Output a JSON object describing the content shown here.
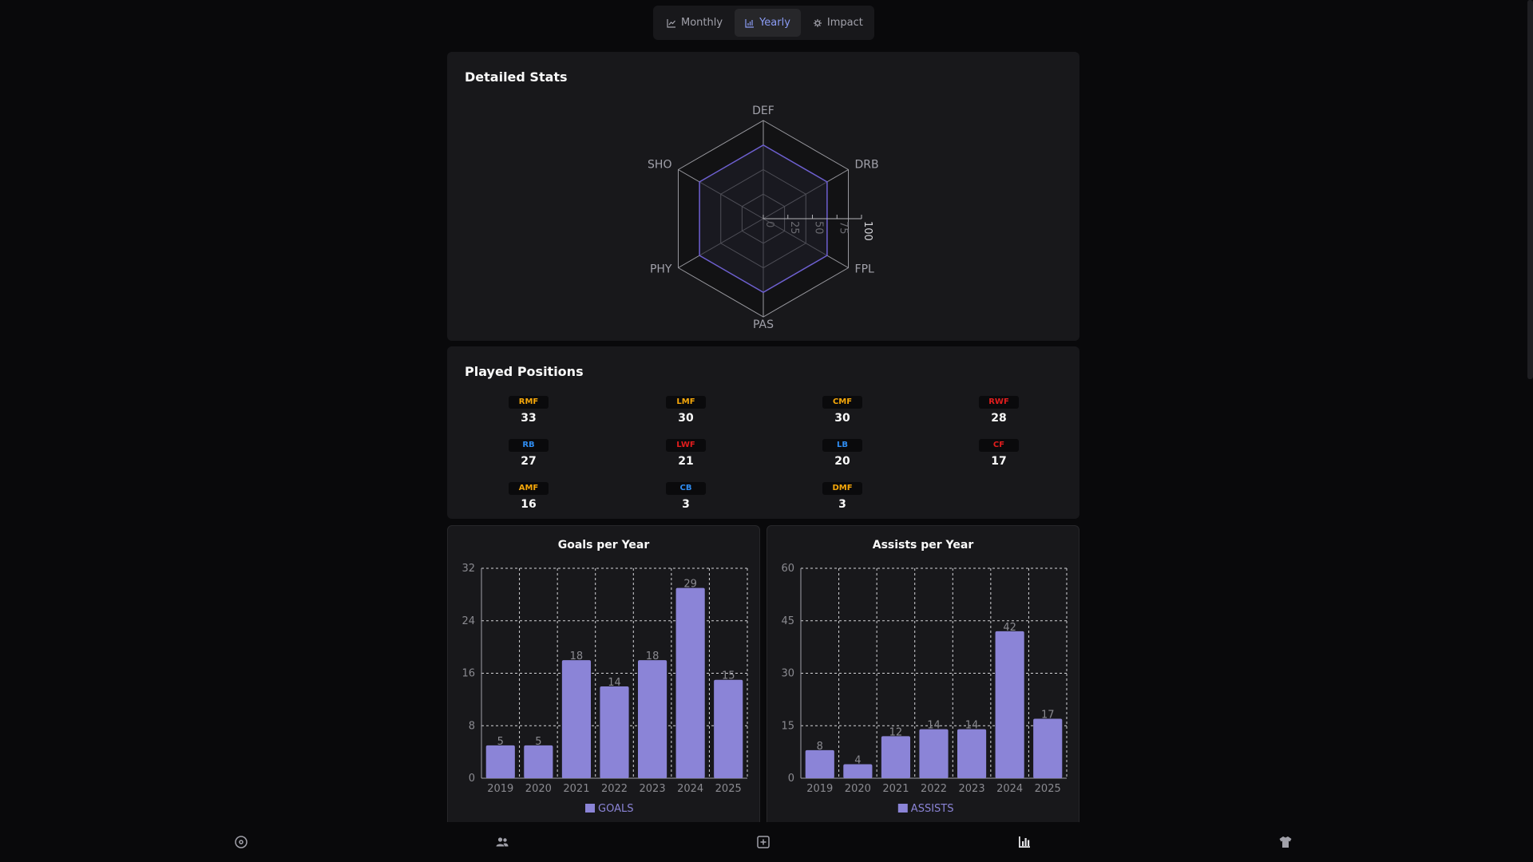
{
  "toggle": {
    "tabs": [
      {
        "label": "Monthly",
        "icon": "line-chart-icon",
        "active": false
      },
      {
        "label": "Yearly",
        "icon": "bar-chart-icon",
        "active": true
      },
      {
        "label": "Impact",
        "icon": "impact-icon",
        "active": false
      }
    ]
  },
  "detailed_stats": {
    "title": "Detailed Stats",
    "radar": {
      "axes": [
        "DEF",
        "DRB",
        "FPL",
        "PAS",
        "PHY",
        "SHO"
      ],
      "scale_ticks": [
        "0",
        "25",
        "50",
        "75",
        "100"
      ],
      "max": 100,
      "values": [
        75,
        75,
        75,
        75,
        75,
        75
      ],
      "color": "#6d5fd0"
    }
  },
  "played_positions": {
    "title": "Played Positions",
    "items": [
      {
        "code": "RMF",
        "count": "33",
        "color": "#f5a70a"
      },
      {
        "code": "LMF",
        "count": "30",
        "color": "#f5a70a"
      },
      {
        "code": "CMF",
        "count": "30",
        "color": "#f5a70a"
      },
      {
        "code": "RWF",
        "count": "28",
        "color": "#e11d1d"
      },
      {
        "code": "RB",
        "count": "27",
        "color": "#2f8cf0"
      },
      {
        "code": "LWF",
        "count": "21",
        "color": "#e11d1d"
      },
      {
        "code": "LB",
        "count": "20",
        "color": "#2f8cf0"
      },
      {
        "code": "CF",
        "count": "17",
        "color": "#e11d1d"
      },
      {
        "code": "AMF",
        "count": "16",
        "color": "#f5a70a"
      },
      {
        "code": "CB",
        "count": "3",
        "color": "#2f8cf0"
      },
      {
        "code": "DMF",
        "count": "3",
        "color": "#f5a70a"
      }
    ]
  },
  "chart_data": [
    {
      "type": "bar",
      "title": "Goals per Year",
      "categories": [
        "2019",
        "2020",
        "2021",
        "2022",
        "2023",
        "2024",
        "2025"
      ],
      "series": [
        {
          "name": "GOALS",
          "values": [
            5,
            5,
            18,
            14,
            18,
            29,
            15
          ]
        }
      ],
      "ylim": [
        0,
        32
      ],
      "yticks": [
        0,
        8,
        16,
        24,
        32
      ],
      "grid": true,
      "legend": "bottom",
      "color": "#8b84d7"
    },
    {
      "type": "bar",
      "title": "Assists per Year",
      "categories": [
        "2019",
        "2020",
        "2021",
        "2022",
        "2023",
        "2024",
        "2025"
      ],
      "series": [
        {
          "name": "ASSISTS",
          "values": [
            8,
            4,
            12,
            14,
            14,
            42,
            17
          ]
        }
      ],
      "ylim": [
        0,
        60
      ],
      "yticks": [
        0,
        15,
        30,
        45,
        60
      ],
      "grid": true,
      "legend": "bottom",
      "color": "#8b84d7"
    }
  ],
  "bottom_nav": {
    "items": [
      {
        "icon": "home-icon"
      },
      {
        "icon": "users-icon"
      },
      {
        "icon": "add-icon"
      },
      {
        "icon": "stats-icon",
        "active": true
      },
      {
        "icon": "jersey-icon"
      }
    ]
  }
}
